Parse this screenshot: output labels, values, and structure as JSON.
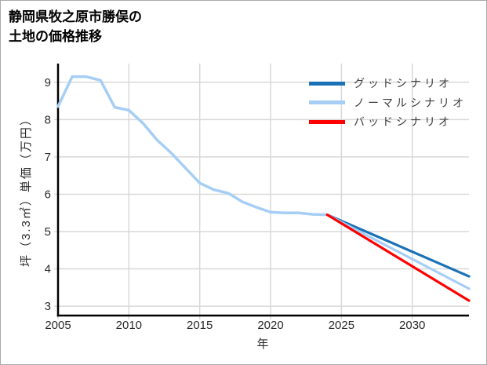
{
  "title": {
    "line1": "静岡県牧之原市勝俣の",
    "line2": "土地の価格推移"
  },
  "chart_data": {
    "type": "line",
    "title": "静岡県牧之原市勝俣の土地の価格推移",
    "xlabel": "年",
    "ylabel": "坪（3.3㎡）単価（万円）",
    "xlim": [
      2005,
      2034
    ],
    "ylim": [
      2.75,
      9.5
    ],
    "x_ticks": [
      2005,
      2010,
      2015,
      2020,
      2025,
      2030
    ],
    "y_ticks": [
      3,
      4,
      5,
      6,
      7,
      8,
      9
    ],
    "grid": true,
    "legend_position": "top-right-inside",
    "colors": {
      "grid": "#d8d8d8",
      "axis": "#000000",
      "tick_text": "#2b2b2b",
      "legend_text": "#3d3d3d"
    },
    "history": {
      "color": "#a6cef5",
      "years": [
        2005,
        2006,
        2007,
        2008,
        2009,
        2010,
        2011,
        2012,
        2013,
        2014,
        2015,
        2016,
        2017,
        2018,
        2019,
        2020,
        2021,
        2022,
        2023,
        2024
      ],
      "values": [
        8.35,
        9.15,
        9.15,
        9.05,
        8.33,
        8.25,
        7.9,
        7.45,
        7.1,
        6.7,
        6.3,
        6.12,
        6.03,
        5.8,
        5.65,
        5.52,
        5.5,
        5.5,
        5.46,
        5.45
      ]
    },
    "scenarios": [
      {
        "key": "good-scenario",
        "label": "グッドシナリオ",
        "color": "#1c72b7",
        "years": [
          2024,
          2034
        ],
        "values": [
          5.45,
          3.8
        ]
      },
      {
        "key": "normal-scenario",
        "label": "ノーマルシナリオ",
        "color": "#a6cef5",
        "years": [
          2024,
          2034
        ],
        "values": [
          5.45,
          3.47
        ]
      },
      {
        "key": "bad-scenario",
        "label": "バッドシナリオ",
        "color": "#ff0000",
        "years": [
          2024,
          2034
        ],
        "values": [
          5.45,
          3.15
        ]
      }
    ]
  }
}
